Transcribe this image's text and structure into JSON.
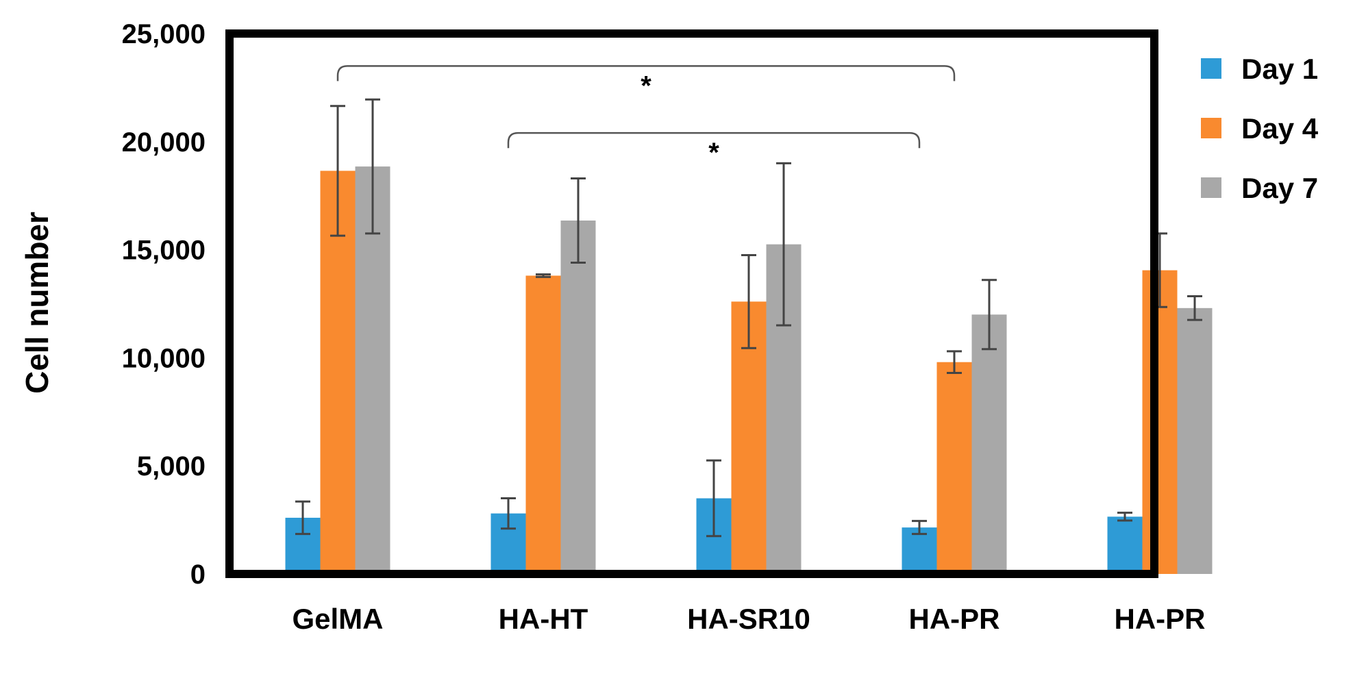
{
  "chart_data": {
    "type": "bar",
    "title": "",
    "xlabel": "",
    "ylabel": "Cell number",
    "ylim": [
      0,
      25000
    ],
    "y_ticks": [
      0,
      5000,
      10000,
      15000,
      20000,
      25000
    ],
    "y_tick_labels": [
      "0",
      "5,000",
      "10,000",
      "15,000",
      "20,000",
      "25,000"
    ],
    "categories": [
      "GelMA",
      "HA-HT",
      "HA-SR10",
      "HA-PR",
      "HA-PR"
    ],
    "series": [
      {
        "name": "Day 1",
        "color": "#2e9bd6",
        "values": [
          2600,
          2800,
          3500,
          2150,
          2650
        ],
        "errors": [
          750,
          700,
          1750,
          300,
          180
        ]
      },
      {
        "name": "Day 4",
        "color": "#f98a2f",
        "values": [
          18650,
          13800,
          12600,
          9800,
          14050
        ],
        "errors": [
          3000,
          60,
          2150,
          500,
          1700
        ]
      },
      {
        "name": "Day 7",
        "color": "#a8a8a8",
        "values": [
          18850,
          16350,
          15250,
          12000,
          12300
        ],
        "errors": [
          3100,
          1950,
          3750,
          1600,
          550
        ]
      }
    ],
    "significance": [
      {
        "label": "*",
        "from": {
          "category_index": 0,
          "series_index": 1
        },
        "to": {
          "category_index": 3,
          "series_index": 1
        },
        "level": 23500,
        "drop": 22800
      },
      {
        "label": "*",
        "from": {
          "category_index": 1,
          "series_index": 0
        },
        "to": {
          "category_index": 3,
          "series_index": 0
        },
        "level": 20400,
        "drop": 19700
      }
    ],
    "legend": {
      "position": "right"
    },
    "grid": false
  }
}
